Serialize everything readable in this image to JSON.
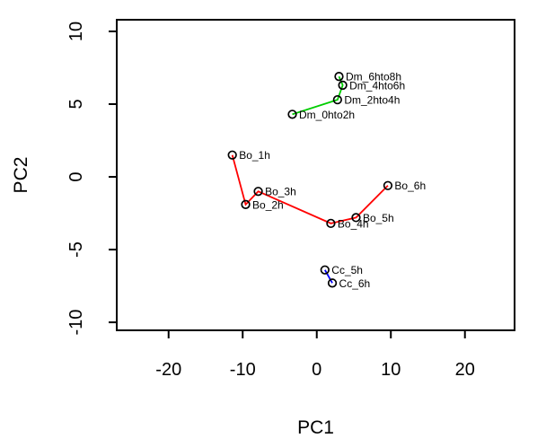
{
  "chart_data": {
    "type": "scatter",
    "title": "",
    "xlabel": "PC1",
    "ylabel": "PC2",
    "xlim": [
      -27.0,
      26.7
    ],
    "ylim": [
      -10.55,
      10.8
    ],
    "x_ticks": [
      -20,
      -10,
      0,
      10,
      20
    ],
    "y_ticks": [
      -10,
      -5,
      0,
      5,
      10
    ],
    "grid": false,
    "legend": "none",
    "point_style": "open-circle",
    "label_position": "right-of-point",
    "colors": {
      "axis": "#000000",
      "background": "#FFFFFF",
      "series_bo": "#FF0000",
      "series_dm": "#00CD00",
      "series_cc": "#0000FF"
    },
    "series": [
      {
        "name": "Bo",
        "color": "#FF0000",
        "connected": true,
        "points": [
          {
            "label": "Bo_1h",
            "x": -11.4,
            "y": 1.5
          },
          {
            "label": "Bo_2h",
            "x": -9.6,
            "y": -1.9
          },
          {
            "label": "Bo_3h",
            "x": -7.9,
            "y": -1.0
          },
          {
            "label": "Bo_4h",
            "x": 1.9,
            "y": -3.2
          },
          {
            "label": "Bo_5h",
            "x": 5.3,
            "y": -2.8
          },
          {
            "label": "Bo_6h",
            "x": 9.6,
            "y": -0.6
          }
        ]
      },
      {
        "name": "Dm",
        "color": "#00CD00",
        "connected": true,
        "points": [
          {
            "label": "Dm_0hto2h",
            "x": -3.3,
            "y": 4.3
          },
          {
            "label": "Dm_2hto4h",
            "x": 2.8,
            "y": 5.3
          },
          {
            "label": "Dm_4hto6h",
            "x": 3.5,
            "y": 6.3
          },
          {
            "label": "Dm_6hto8h",
            "x": 3.0,
            "y": 6.9
          }
        ]
      },
      {
        "name": "Cc",
        "color": "#0000FF",
        "connected": true,
        "points": [
          {
            "label": "Cc_5h",
            "x": 1.1,
            "y": -6.4
          },
          {
            "label": "Cc_6h",
            "x": 2.1,
            "y": -7.3
          }
        ]
      }
    ]
  }
}
